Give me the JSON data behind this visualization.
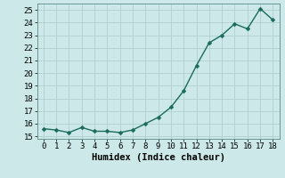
{
  "x": [
    0,
    1,
    2,
    3,
    4,
    5,
    6,
    7,
    8,
    9,
    10,
    11,
    12,
    13,
    14,
    15,
    16,
    17,
    18
  ],
  "y": [
    15.6,
    15.5,
    15.3,
    15.7,
    15.4,
    15.4,
    15.3,
    15.5,
    16.0,
    16.5,
    17.3,
    18.6,
    20.6,
    22.4,
    23.0,
    23.9,
    23.5,
    25.1,
    24.2
  ],
  "line_color": "#1a6b5e",
  "marker": "D",
  "marker_size": 2.5,
  "bg_color": "#cce8e8",
  "grid_color": "#b0d0d0",
  "xlabel": "Humidex (Indice chaleur)",
  "xlim": [
    -0.5,
    18.5
  ],
  "ylim": [
    14.8,
    25.5
  ],
  "yticks": [
    15,
    16,
    17,
    18,
    19,
    20,
    21,
    22,
    23,
    24,
    25
  ],
  "xticks": [
    0,
    1,
    2,
    3,
    4,
    5,
    6,
    7,
    8,
    9,
    10,
    11,
    12,
    13,
    14,
    15,
    16,
    17,
    18
  ],
  "tick_fontsize": 6.5,
  "xlabel_fontsize": 7.5,
  "line_width": 1.0
}
